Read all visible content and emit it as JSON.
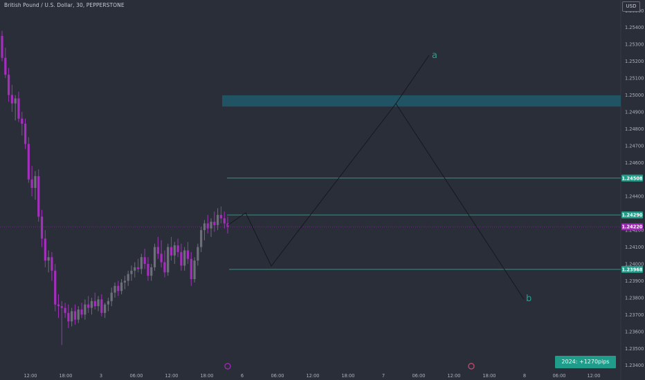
{
  "header": {
    "symbol_title": "British Pound / U.S. Dollar, 30, PEPPERSTONE",
    "currency": "USD"
  },
  "stats_badge": "2024: +1270pips",
  "colors": {
    "background": "#2a2e39",
    "bull_candle": "#6e7079",
    "bear_candle": "#a52fbd",
    "level_line": "#1f9d8a",
    "zone": "#1f5868",
    "path": "#151820",
    "current_price": "#9c27b0"
  },
  "chart_data": {
    "type": "candlestick",
    "title": "British Pound / U.S. Dollar, 30, PEPPERSTONE",
    "ylabel": "USD",
    "ylim": [
      1.2335,
      1.2558
    ],
    "y_ticks": [
      "1.25500",
      "1.25400",
      "1.25300",
      "1.25200",
      "1.25100",
      "1.25000",
      "1.24900",
      "1.24800",
      "1.24700",
      "1.24600",
      "1.24400",
      "1.24200",
      "1.24100",
      "1.24000",
      "1.23900",
      "1.23800",
      "1.23700",
      "1.23600",
      "1.23500",
      "1.23400"
    ],
    "x_ticks": [
      "12:00",
      "18:00",
      "3",
      "06:00",
      "12:00",
      "18:00",
      "6",
      "06:00",
      "12:00",
      "18:00",
      "7",
      "06:00",
      "12:00",
      "18:00",
      "8",
      "06:00",
      "12:00"
    ],
    "candles": [
      {
        "o": 1.2535,
        "h": 1.2538,
        "l": 1.252,
        "c": 1.2522
      },
      {
        "o": 1.2522,
        "h": 1.2528,
        "l": 1.251,
        "c": 1.2512
      },
      {
        "o": 1.2512,
        "h": 1.2516,
        "l": 1.2496,
        "c": 1.25
      },
      {
        "o": 1.25,
        "h": 1.2506,
        "l": 1.249,
        "c": 1.2495
      },
      {
        "o": 1.2495,
        "h": 1.25,
        "l": 1.2485,
        "c": 1.2498
      },
      {
        "o": 1.2498,
        "h": 1.2502,
        "l": 1.2484,
        "c": 1.2486
      },
      {
        "o": 1.2486,
        "h": 1.249,
        "l": 1.2476,
        "c": 1.2483
      },
      {
        "o": 1.2483,
        "h": 1.2486,
        "l": 1.2468,
        "c": 1.2471
      },
      {
        "o": 1.2471,
        "h": 1.2475,
        "l": 1.2448,
        "c": 1.245
      },
      {
        "o": 1.245,
        "h": 1.2458,
        "l": 1.244,
        "c": 1.2445
      },
      {
        "o": 1.2445,
        "h": 1.2455,
        "l": 1.2438,
        "c": 1.2452
      },
      {
        "o": 1.2452,
        "h": 1.2456,
        "l": 1.2425,
        "c": 1.2428
      },
      {
        "o": 1.2428,
        "h": 1.2432,
        "l": 1.241,
        "c": 1.2415
      },
      {
        "o": 1.2415,
        "h": 1.242,
        "l": 1.2398,
        "c": 1.2402
      },
      {
        "o": 1.2402,
        "h": 1.2408,
        "l": 1.2395,
        "c": 1.2404
      },
      {
        "o": 1.2404,
        "h": 1.2407,
        "l": 1.239,
        "c": 1.2396
      },
      {
        "o": 1.2396,
        "h": 1.24,
        "l": 1.2372,
        "c": 1.2376
      },
      {
        "o": 1.2376,
        "h": 1.2382,
        "l": 1.2368,
        "c": 1.2375
      },
      {
        "o": 1.2375,
        "h": 1.2378,
        "l": 1.2352,
        "c": 1.2374
      },
      {
        "o": 1.2374,
        "h": 1.2377,
        "l": 1.2368,
        "c": 1.2371
      },
      {
        "o": 1.2371,
        "h": 1.2376,
        "l": 1.2362,
        "c": 1.2366
      },
      {
        "o": 1.2366,
        "h": 1.2374,
        "l": 1.2363,
        "c": 1.2372
      },
      {
        "o": 1.2372,
        "h": 1.2376,
        "l": 1.2364,
        "c": 1.2367
      },
      {
        "o": 1.2367,
        "h": 1.2375,
        "l": 1.2365,
        "c": 1.2373
      },
      {
        "o": 1.2373,
        "h": 1.2377,
        "l": 1.2368,
        "c": 1.237
      },
      {
        "o": 1.237,
        "h": 1.2379,
        "l": 1.2367,
        "c": 1.2376
      },
      {
        "o": 1.2376,
        "h": 1.2381,
        "l": 1.2371,
        "c": 1.2374
      },
      {
        "o": 1.2374,
        "h": 1.238,
        "l": 1.237,
        "c": 1.2378
      },
      {
        "o": 1.2378,
        "h": 1.2383,
        "l": 1.2373,
        "c": 1.2375
      },
      {
        "o": 1.2375,
        "h": 1.2381,
        "l": 1.2372,
        "c": 1.2379
      },
      {
        "o": 1.2379,
        "h": 1.2382,
        "l": 1.2369,
        "c": 1.2371
      },
      {
        "o": 1.2371,
        "h": 1.2377,
        "l": 1.2368,
        "c": 1.2376
      },
      {
        "o": 1.2376,
        "h": 1.238,
        "l": 1.2372,
        "c": 1.2378
      },
      {
        "o": 1.2378,
        "h": 1.2386,
        "l": 1.2375,
        "c": 1.2383
      },
      {
        "o": 1.2383,
        "h": 1.2389,
        "l": 1.238,
        "c": 1.2387
      },
      {
        "o": 1.2387,
        "h": 1.239,
        "l": 1.2381,
        "c": 1.2384
      },
      {
        "o": 1.2384,
        "h": 1.2391,
        "l": 1.2382,
        "c": 1.2389
      },
      {
        "o": 1.2389,
        "h": 1.2393,
        "l": 1.2385,
        "c": 1.239
      },
      {
        "o": 1.239,
        "h": 1.2396,
        "l": 1.2387,
        "c": 1.2394
      },
      {
        "o": 1.2394,
        "h": 1.2399,
        "l": 1.239,
        "c": 1.2396
      },
      {
        "o": 1.2396,
        "h": 1.2401,
        "l": 1.2392,
        "c": 1.2398
      },
      {
        "o": 1.2398,
        "h": 1.2403,
        "l": 1.2395,
        "c": 1.2397
      },
      {
        "o": 1.2397,
        "h": 1.2406,
        "l": 1.2394,
        "c": 1.2404
      },
      {
        "o": 1.2404,
        "h": 1.2409,
        "l": 1.2397,
        "c": 1.24
      },
      {
        "o": 1.24,
        "h": 1.2404,
        "l": 1.239,
        "c": 1.2393
      },
      {
        "o": 1.2393,
        "h": 1.24,
        "l": 1.239,
        "c": 1.2398
      },
      {
        "o": 1.2398,
        "h": 1.2412,
        "l": 1.2396,
        "c": 1.241
      },
      {
        "o": 1.241,
        "h": 1.2416,
        "l": 1.2403,
        "c": 1.2406
      },
      {
        "o": 1.2406,
        "h": 1.2414,
        "l": 1.2398,
        "c": 1.2401
      },
      {
        "o": 1.2401,
        "h": 1.2408,
        "l": 1.2392,
        "c": 1.2395
      },
      {
        "o": 1.2395,
        "h": 1.2412,
        "l": 1.2393,
        "c": 1.241
      },
      {
        "o": 1.241,
        "h": 1.2416,
        "l": 1.2402,
        "c": 1.2405
      },
      {
        "o": 1.2405,
        "h": 1.2413,
        "l": 1.24,
        "c": 1.2411
      },
      {
        "o": 1.2411,
        "h": 1.2415,
        "l": 1.2404,
        "c": 1.2407
      },
      {
        "o": 1.2407,
        "h": 1.2412,
        "l": 1.2396,
        "c": 1.2399
      },
      {
        "o": 1.2399,
        "h": 1.241,
        "l": 1.2396,
        "c": 1.2408
      },
      {
        "o": 1.2408,
        "h": 1.2413,
        "l": 1.24,
        "c": 1.2403
      },
      {
        "o": 1.2403,
        "h": 1.2407,
        "l": 1.2387,
        "c": 1.2391
      },
      {
        "o": 1.2391,
        "h": 1.2404,
        "l": 1.2389,
        "c": 1.2402
      },
      {
        "o": 1.2402,
        "h": 1.2412,
        "l": 1.2399,
        "c": 1.241
      },
      {
        "o": 1.241,
        "h": 1.2422,
        "l": 1.2407,
        "c": 1.242
      },
      {
        "o": 1.242,
        "h": 1.2426,
        "l": 1.2414,
        "c": 1.2424
      },
      {
        "o": 1.2424,
        "h": 1.2429,
        "l": 1.2418,
        "c": 1.2421
      },
      {
        "o": 1.2421,
        "h": 1.2427,
        "l": 1.2416,
        "c": 1.2425
      },
      {
        "o": 1.2425,
        "h": 1.2431,
        "l": 1.2419,
        "c": 1.2423
      },
      {
        "o": 1.2423,
        "h": 1.2433,
        "l": 1.242,
        "c": 1.2429
      },
      {
        "o": 1.2429,
        "h": 1.2434,
        "l": 1.2424,
        "c": 1.2427
      },
      {
        "o": 1.2427,
        "h": 1.2431,
        "l": 1.2421,
        "c": 1.2424
      },
      {
        "o": 1.2424,
        "h": 1.2428,
        "l": 1.2418,
        "c": 1.2422
      }
    ],
    "levels": [
      {
        "label": "1.24508",
        "value": 1.24508
      },
      {
        "label": "1.24290",
        "value": 1.2429
      },
      {
        "label": "1.23968",
        "value": 1.23968
      }
    ],
    "current_price": {
      "label": "1.24220",
      "value": 1.2422
    },
    "zone": {
      "from": 1.2494,
      "to": 1.2499
    },
    "projection_path": [
      {
        "x": "6",
        "y": 1.2422
      },
      {
        "x": "6",
        "y": 1.2429
      },
      {
        "x": "6 06:00",
        "y": 1.23968
      },
      {
        "x": "7",
        "y": 1.2494
      },
      {
        "x": "7 12:00",
        "y": 1.249
      },
      {
        "x": "8",
        "y": 1.2378
      }
    ],
    "point_labels": [
      {
        "text": "a",
        "y": 1.252
      },
      {
        "text": "b",
        "y": 1.2378
      }
    ]
  }
}
